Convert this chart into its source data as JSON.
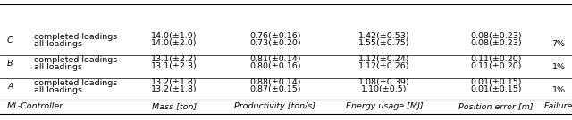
{
  "headers": [
    "ML-Controller",
    "",
    "Mass [ton]",
    "Productivity [ton/s]",
    "Energy usage [MJ]",
    "Position error [m]",
    "Failure"
  ],
  "rows": [
    [
      "A",
      "all loadings",
      "13.2(±1.8)",
      "0.87(±0.15)",
      "1.10(±0.5)",
      "0.01(±0.15)",
      "1%"
    ],
    [
      "",
      "completed loadings",
      "13.2(±1.8)",
      "0.88(±0.14)",
      "1.08(±0.39)",
      "0.01(±0.15)",
      ""
    ],
    [
      "B",
      "all loadings",
      "13.1(±2.3)",
      "0.80(±0.16)",
      "1.12(±0.26)",
      "0.11(±0.20)",
      "1%"
    ],
    [
      "",
      "completed loadings",
      "13.1(±2.2)",
      "0.81(±0.14)",
      "1.12(±0.24)",
      "0.11(±0.20)",
      ""
    ],
    [
      "C",
      "all loadings",
      "14.0(±2.0)",
      "0.73(±0.20)",
      "1.55(±0.75)",
      "0.08(±0.23)",
      "7%"
    ],
    [
      "",
      "completed loadings",
      "14.0(±1.9)",
      "0.76(±0.16)",
      "1.42(±0.53)",
      "0.08(±0.23)",
      ""
    ]
  ],
  "font_size": 6.8,
  "bg_color": "#ffffff",
  "line_color": "#000000"
}
